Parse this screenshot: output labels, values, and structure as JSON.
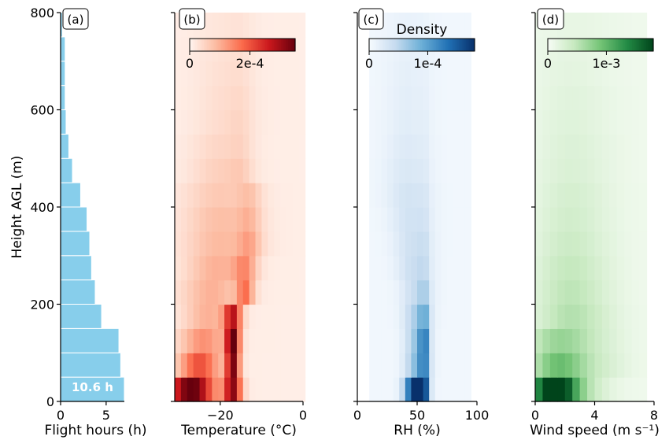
{
  "chart_data": [
    {
      "type": "bar",
      "panel_label": "(a)",
      "orientation": "horizontal",
      "ylabel": "Height AGL (m)",
      "xlabel": "Flight hours (h)",
      "ylim": [
        0,
        800
      ],
      "xlim": [
        0,
        7
      ],
      "yticks": [
        "0",
        "200",
        "400",
        "600",
        "800"
      ],
      "xticks": [
        "0",
        "5"
      ],
      "bar_height_m": 50,
      "categories_m": [
        0,
        50,
        100,
        150,
        200,
        250,
        300,
        350,
        400,
        450,
        500,
        550,
        600,
        650,
        700,
        750
      ],
      "values": [
        7.0,
        6.6,
        6.4,
        4.5,
        3.8,
        3.4,
        3.2,
        2.9,
        2.2,
        1.3,
        0.9,
        0.6,
        0.5,
        0.5,
        0.5,
        0.2
      ],
      "annotation": "10.6 h",
      "color": "#87ceeb"
    },
    {
      "type": "heatmap",
      "panel_label": "(b)",
      "xlabel": "Temperature (°C)",
      "xlim": [
        -31,
        0
      ],
      "xticks": [
        "−20",
        "0"
      ],
      "ylim": [
        0,
        800
      ],
      "colormap": "Reds",
      "colorbar_ticks": [
        "0",
        "2e-4"
      ],
      "colorbar_max": 0.00035,
      "colorbar_tick_values": [
        0,
        0.0002
      ],
      "x_bins": [
        -31,
        0,
        1.5
      ],
      "y_bins": [
        0,
        775,
        50
      ],
      "row_profiles": [
        {
          "c": -27,
          "w": 4,
          "a": 1.0,
          "c2": -17,
          "w2": 1.5,
          "a2": 0.85
        },
        {
          "c": -25,
          "w": 3.5,
          "a": 0.55,
          "c2": -17,
          "w2": 1.2,
          "a2": 0.9
        },
        {
          "c": -24,
          "w": 4,
          "a": 0.35,
          "c2": -17,
          "w2": 1.2,
          "a2": 1.0
        },
        {
          "c": -23,
          "w": 4,
          "a": 0.25,
          "c2": -17,
          "w2": 1.5,
          "a2": 0.7
        },
        {
          "c": -22,
          "w": 5,
          "a": 0.25,
          "c2": -14,
          "w2": 1.5,
          "a2": 0.4
        },
        {
          "c": -21,
          "w": 5,
          "a": 0.25,
          "c2": -14,
          "w2": 2,
          "a2": 0.3
        },
        {
          "c": -20,
          "w": 6,
          "a": 0.22,
          "c2": -13,
          "w2": 2,
          "a2": 0.2
        },
        {
          "c": -20,
          "w": 6,
          "a": 0.2,
          "c2": -13,
          "w2": 2,
          "a2": 0.15
        },
        {
          "c": -20,
          "w": 6,
          "a": 0.16,
          "c2": -13,
          "w2": 2,
          "a2": 0.12
        },
        {
          "c": -20,
          "w": 5,
          "a": 0.13,
          "c2": -15,
          "w2": 2,
          "a2": 0.08
        },
        {
          "c": -20,
          "w": 5,
          "a": 0.1,
          "c2": -15,
          "w2": 2,
          "a2": 0.06
        },
        {
          "c": -19,
          "w": 5,
          "a": 0.08,
          "c2": -15,
          "w2": 2,
          "a2": 0.05
        },
        {
          "c": -19,
          "w": 5,
          "a": 0.07,
          "c2": -15,
          "w2": 2,
          "a2": 0.04
        },
        {
          "c": -19,
          "w": 5,
          "a": 0.06,
          "c2": -15,
          "w2": 2,
          "a2": 0.03
        },
        {
          "c": -19,
          "w": 5,
          "a": 0.05,
          "c2": -15,
          "w2": 2,
          "a2": 0.03
        },
        {
          "c": -19,
          "w": 5,
          "a": 0.04,
          "c2": -15,
          "w2": 2,
          "a2": 0.02
        }
      ],
      "background_level": 0.03
    },
    {
      "type": "heatmap",
      "panel_label": "(c)",
      "xlabel": "RH (%)",
      "xlim": [
        0,
        100
      ],
      "xticks": [
        "0",
        "50",
        "100"
      ],
      "ylim": [
        0,
        800
      ],
      "colormap": "Blues",
      "colorbar_label": "Density",
      "colorbar_ticks": [
        "0",
        "1e-4"
      ],
      "colorbar_max": 0.00018,
      "colorbar_tick_values": [
        0,
        0.0001
      ],
      "x_bins": [
        10,
        95,
        5
      ],
      "y_bins": [
        0,
        775,
        50
      ],
      "row_profiles": [
        {
          "c": 48,
          "w": 6,
          "a": 1.0,
          "c2": 56,
          "w2": 3,
          "a2": 0.6
        },
        {
          "c": 50,
          "w": 7,
          "a": 0.4,
          "c2": 56,
          "w2": 3,
          "a2": 0.45
        },
        {
          "c": 50,
          "w": 7,
          "a": 0.35,
          "c2": 56,
          "w2": 3,
          "a2": 0.5
        },
        {
          "c": 50,
          "w": 8,
          "a": 0.3,
          "c2": 56,
          "w2": 3,
          "a2": 0.3
        },
        {
          "c": 50,
          "w": 9,
          "a": 0.22,
          "c2": 56,
          "w2": 3,
          "a2": 0.15
        },
        {
          "c": 48,
          "w": 10,
          "a": 0.2,
          "c2": 56,
          "w2": 3,
          "a2": 0.1
        },
        {
          "c": 47,
          "w": 11,
          "a": 0.18,
          "c2": 56,
          "w2": 3,
          "a2": 0.08
        },
        {
          "c": 45,
          "w": 12,
          "a": 0.16,
          "c2": 56,
          "w2": 3,
          "a2": 0.06
        },
        {
          "c": 43,
          "w": 13,
          "a": 0.15,
          "c2": 56,
          "w2": 3,
          "a2": 0.05
        },
        {
          "c": 42,
          "w": 13,
          "a": 0.12,
          "c2": 56,
          "w2": 3,
          "a2": 0.04
        },
        {
          "c": 42,
          "w": 13,
          "a": 0.1,
          "c2": 56,
          "w2": 3,
          "a2": 0.03
        },
        {
          "c": 42,
          "w": 13,
          "a": 0.08,
          "c2": 56,
          "w2": 3,
          "a2": 0.03
        },
        {
          "c": 42,
          "w": 13,
          "a": 0.07,
          "c2": 56,
          "w2": 3,
          "a2": 0.02
        },
        {
          "c": 42,
          "w": 13,
          "a": 0.06,
          "c2": 56,
          "w2": 3,
          "a2": 0.02
        },
        {
          "c": 42,
          "w": 13,
          "a": 0.05,
          "c2": 56,
          "w2": 3,
          "a2": 0.02
        },
        {
          "c": 42,
          "w": 13,
          "a": 0.04,
          "c2": 56,
          "w2": 3,
          "a2": 0.01
        }
      ],
      "background_level": 0.03
    },
    {
      "type": "heatmap",
      "panel_label": "(d)",
      "xlabel": "Wind speed (m s⁻¹)",
      "xlim": [
        0,
        8
      ],
      "xticks": [
        "0",
        "4",
        "8"
      ],
      "ylim": [
        0,
        800
      ],
      "colormap": "Greens",
      "colorbar_ticks": [
        "0",
        "1e-3"
      ],
      "colorbar_max": 0.0018,
      "colorbar_tick_values": [
        0,
        0.001
      ],
      "x_bins": [
        0,
        7.5,
        0.5
      ],
      "y_bins": [
        0,
        775,
        50
      ],
      "row_profiles": [
        {
          "c": 1.2,
          "w": 1.0,
          "a": 1.0,
          "c2": 2.5,
          "w2": 1.5,
          "a2": 0.3
        },
        {
          "c": 1.5,
          "w": 1.3,
          "a": 0.45,
          "c2": 4,
          "w2": 1.5,
          "a2": 0.15
        },
        {
          "c": 1.5,
          "w": 1.5,
          "a": 0.32,
          "c2": 4,
          "w2": 1.5,
          "a2": 0.12
        },
        {
          "c": 2,
          "w": 1.5,
          "a": 0.22,
          "c2": 4,
          "w2": 1.5,
          "a2": 0.1
        },
        {
          "c": 2,
          "w": 1.5,
          "a": 0.2,
          "c2": 4,
          "w2": 1.5,
          "a2": 0.08
        },
        {
          "c": 2,
          "w": 1.5,
          "a": 0.18,
          "c2": 4,
          "w2": 1.5,
          "a2": 0.07
        },
        {
          "c": 2,
          "w": 1.5,
          "a": 0.15,
          "c2": 4,
          "w2": 1.5,
          "a2": 0.06
        },
        {
          "c": 2,
          "w": 1.5,
          "a": 0.13,
          "c2": 4,
          "w2": 1.5,
          "a2": 0.05
        },
        {
          "c": 2,
          "w": 1.5,
          "a": 0.11,
          "c2": 4,
          "w2": 1.5,
          "a2": 0.05
        },
        {
          "c": 2,
          "w": 1.5,
          "a": 0.09,
          "c2": 4,
          "w2": 1.5,
          "a2": 0.04
        },
        {
          "c": 2,
          "w": 1.5,
          "a": 0.08,
          "c2": 4,
          "w2": 1.5,
          "a2": 0.04
        },
        {
          "c": 2,
          "w": 1.5,
          "a": 0.07,
          "c2": 4,
          "w2": 1.5,
          "a2": 0.03
        },
        {
          "c": 2,
          "w": 1.5,
          "a": 0.06,
          "c2": 4,
          "w2": 1.5,
          "a2": 0.03
        },
        {
          "c": 2,
          "w": 1.5,
          "a": 0.05,
          "c2": 4,
          "w2": 1.5,
          "a2": 0.02
        },
        {
          "c": 2,
          "w": 1.5,
          "a": 0.04,
          "c2": 4,
          "w2": 1.5,
          "a2": 0.02
        },
        {
          "c": 2,
          "w": 1.5,
          "a": 0.03,
          "c2": 4,
          "w2": 1.5,
          "a2": 0.02
        }
      ],
      "background_level": 0.04
    }
  ]
}
